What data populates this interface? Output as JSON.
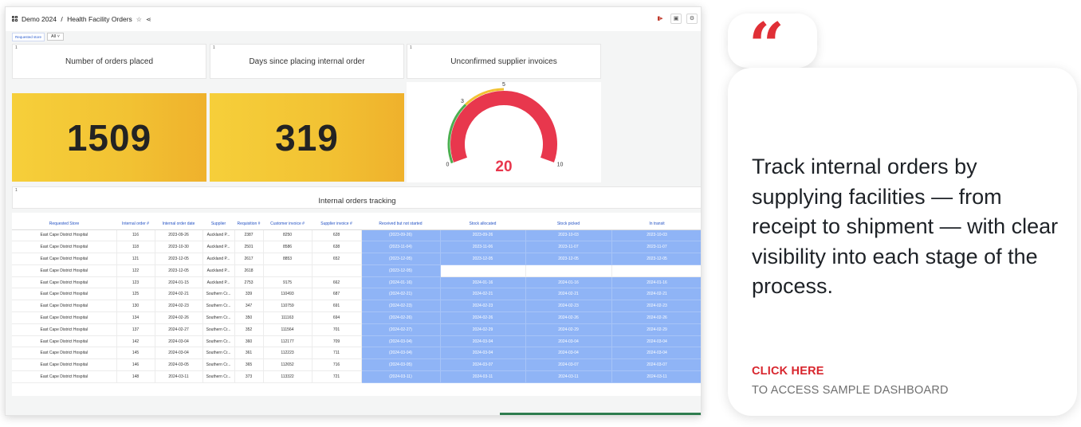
{
  "header": {
    "workspace": "Demo 2024",
    "separator": "/",
    "dashboard_title": "Health Facility Orders"
  },
  "filter": {
    "label": "Requested store",
    "value": "All"
  },
  "cards": {
    "orders_placed": {
      "index": "1",
      "title": "Number of orders placed",
      "value": "1509"
    },
    "days_since": {
      "index": "1",
      "title": "Days since placing internal order",
      "value": "319"
    },
    "unconfirmed": {
      "index": "1",
      "title": "Unconfirmed supplier invoices",
      "value": "20"
    }
  },
  "gauge": {
    "value": 20,
    "min": 0,
    "max": 10,
    "tick_labels": [
      "0",
      "3",
      "5",
      "10"
    ],
    "colors": {
      "low": "#4caf50",
      "mid": "#f2c233",
      "high": "#e8374d"
    }
  },
  "tracking": {
    "index": "1",
    "title": "Internal orders tracking",
    "columns": [
      "Requested Store",
      "Internal order #",
      "Internal order date",
      "Supplier",
      "Requisition #",
      "Customer invoice #",
      "Supplier invoice #",
      "Received but not started",
      "Stock allocated",
      "Stock picked",
      "In transit"
    ],
    "rows": [
      [
        "East Cape District Hospital",
        "116",
        "2023-09-26",
        "Auckland P...",
        "2387",
        "8250",
        "628",
        "(2023-09-26)",
        "2023-09-26",
        "2023-10-03",
        "2023-10-03"
      ],
      [
        "East Cape District Hospital",
        "118",
        "2023-10-30",
        "Auckland P...",
        "2501",
        "8586",
        "638",
        "(2023-11-04)",
        "2023-11-06",
        "2023-11-07",
        "2023-11-07"
      ],
      [
        "East Cape District Hospital",
        "121",
        "2023-12-05",
        "Auckland P...",
        "2617",
        "8853",
        "652",
        "(2023-12-05)",
        "2023-12-05",
        "2023-12-05",
        "2023-12-05"
      ],
      [
        "East Cape District Hospital",
        "122",
        "2023-12-05",
        "Auckland P...",
        "2618",
        "",
        "",
        "(2023-12-05)",
        "",
        "",
        ""
      ],
      [
        "East Cape District Hospital",
        "123",
        "2024-01-15",
        "Auckland P...",
        "2753",
        "9175",
        "662",
        "(2024-01-16)",
        "2024-01-16",
        "2024-01-16",
        "2024-01-16"
      ],
      [
        "East Cape District Hospital",
        "125",
        "2024-02-21",
        "Southern Cr...",
        "339",
        "110493",
        "687",
        "(2024-02-21)",
        "2024-02-21",
        "2024-02-21",
        "2024-02-21"
      ],
      [
        "East Cape District Hospital",
        "130",
        "2024-02-23",
        "Southern Cr...",
        "347",
        "110759",
        "691",
        "(2024-02-23)",
        "2024-02-23",
        "2024-02-23",
        "2024-02-23"
      ],
      [
        "East Cape District Hospital",
        "134",
        "2024-02-26",
        "Southern Cr...",
        "350",
        "111163",
        "694",
        "(2024-02-26)",
        "2024-02-26",
        "2024-02-26",
        "2024-02-26"
      ],
      [
        "East Cape District Hospital",
        "137",
        "2024-02-27",
        "Southern Cr...",
        "352",
        "111564",
        "701",
        "(2024-02-27)",
        "2024-02-29",
        "2024-02-29",
        "2024-02-29"
      ],
      [
        "East Cape District Hospital",
        "142",
        "2024-03-04",
        "Southern Cr...",
        "360",
        "112177",
        "709",
        "(2024-03-04)",
        "2024-03-04",
        "2024-03-04",
        "2024-03-04"
      ],
      [
        "East Cape District Hospital",
        "145",
        "2024-03-04",
        "Southern Cr...",
        "361",
        "112223",
        "711",
        "(2024-03-04)",
        "2024-03-04",
        "2024-03-04",
        "2024-03-04"
      ],
      [
        "East Cape District Hospital",
        "146",
        "2024-03-05",
        "Southern Cr...",
        "365",
        "112652",
        "716",
        "(2024-03-05)",
        "2024-03-07",
        "2024-03-07",
        "2024-03-07"
      ],
      [
        "East Cape District Hospital",
        "148",
        "2024-03-11",
        "Southern Cr...",
        "373",
        "113322",
        "721",
        "(2024-03-11)",
        "2024-03-11",
        "2024-03-11",
        "2024-03-11"
      ]
    ]
  },
  "callout": {
    "quote_glyph": "“",
    "text": "Track internal orders by supplying facilities — from receipt to shipment — with clear visibility into each stage of the process.",
    "cta": "CLICK HERE",
    "cta_sub": "TO ACCESS SAMPLE DASHBOARD"
  },
  "icons": {
    "star": "star-icon",
    "share": "share-icon",
    "grid": "dashboard-grid-icon"
  }
}
